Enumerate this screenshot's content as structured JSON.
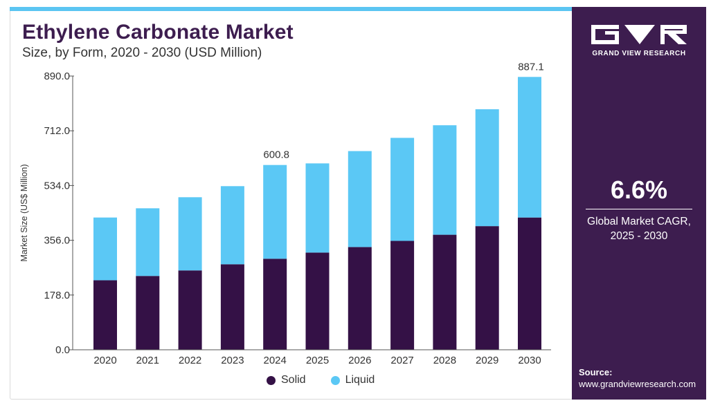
{
  "header": {
    "title": "Ethylene Carbonate Market",
    "subtitle": "Size, by Form, 2020 - 2030 (USD Million)"
  },
  "colors": {
    "solid": "#341146",
    "liquid": "#5bc8f5",
    "panel": "#3d1d4f",
    "accent": "#5bc5f2"
  },
  "chart_data": {
    "type": "bar",
    "stacked": true,
    "categories": [
      "2020",
      "2021",
      "2022",
      "2023",
      "2024",
      "2025",
      "2026",
      "2027",
      "2028",
      "2029",
      "2030"
    ],
    "series": [
      {
        "name": "Solid",
        "values": [
          226,
          240,
          258,
          278,
          296,
          316,
          334,
          354,
          374,
          402,
          430
        ]
      },
      {
        "name": "Liquid",
        "values": [
          204,
          220,
          238,
          254,
          304.8,
          290,
          312,
          335,
          356,
          380,
          457.1
        ]
      }
    ],
    "ylabel": "Market Size (US$ Million)",
    "xlabel": "",
    "ylim": [
      0,
      890
    ],
    "yticks": [
      "0.0",
      "178.0",
      "356.0",
      "534.0",
      "712.0",
      "890.0"
    ],
    "annotations": [
      {
        "category": "2024",
        "text": "600.8"
      },
      {
        "category": "2030",
        "text": "887.1"
      }
    ],
    "grid": false,
    "legend": "bottom-center"
  },
  "legend": {
    "solid_label": "Solid",
    "liquid_label": "Liquid"
  },
  "side_panel": {
    "brand": "GRAND VIEW RESEARCH",
    "logo_icon": "gvr-logo-icon",
    "cagr_value": "6.6%",
    "cagr_label_line1": "Global Market CAGR,",
    "cagr_label_line2": "2025 - 2030",
    "source_label": "Source:",
    "source_url": "www.grandviewresearch.com"
  }
}
